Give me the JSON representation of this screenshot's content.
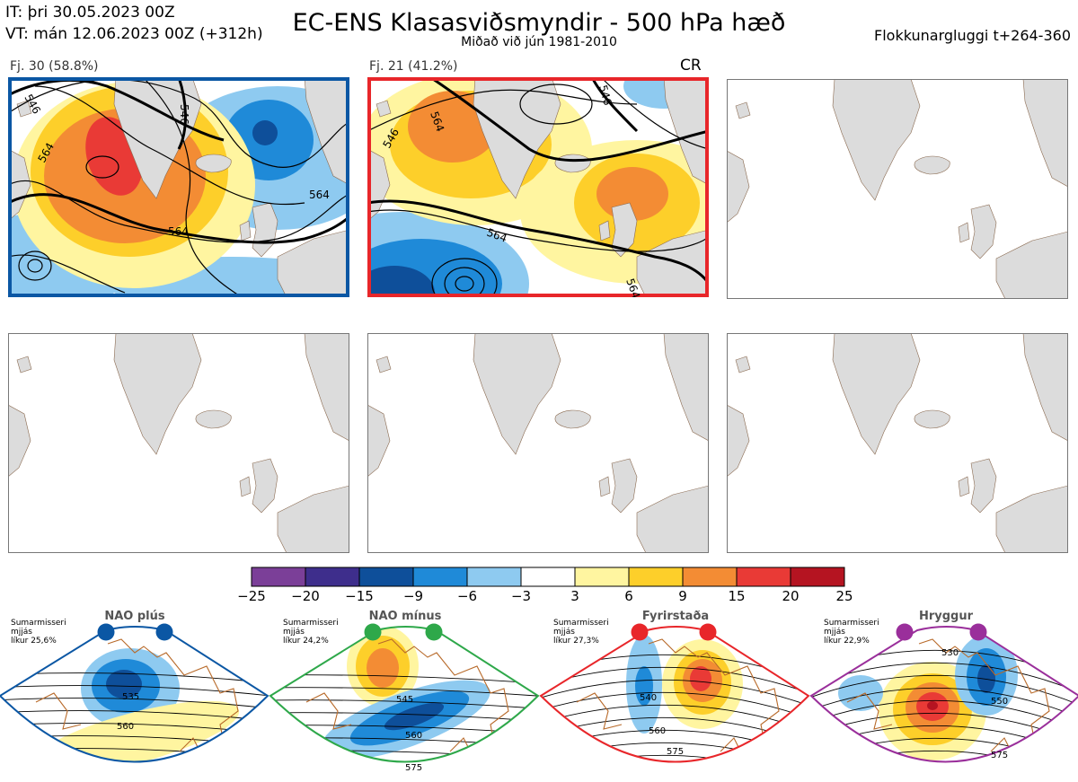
{
  "header": {
    "it_line": "IT: þri 30.05.2023 00Z",
    "vt_line": "VT: mán 12.06.2023 00Z  (+312h)",
    "title": "EC-ENS Klasasviðsmyndir - 500 hPa hæð",
    "subtitle": "Miðað við jún 1981-2010",
    "window_label": "Flokkunargluggi t+264-360"
  },
  "panels": [
    {
      "label": "Fj. 30 (58.8%)",
      "border_color": "#0b57a4",
      "tag": ""
    },
    {
      "label": "Fj. 21 (41.2%)",
      "border_color": "#e8262a",
      "tag": "CR"
    },
    {
      "label": "",
      "border_color": "",
      "tag": ""
    },
    {
      "label": "",
      "border_color": "",
      "tag": ""
    },
    {
      "label": "",
      "border_color": "",
      "tag": ""
    },
    {
      "label": "",
      "border_color": "",
      "tag": ""
    }
  ],
  "contour_labels": {
    "panel1": [
      "546",
      "546",
      "564",
      "564",
      "564"
    ],
    "panel2": [
      "546",
      "546",
      "564",
      "564",
      "564"
    ]
  },
  "chart_data": {
    "type": "heatmap",
    "title": "EC-ENS Klasasviðsmyndir - 500 hPa hæð",
    "colorbar": {
      "ticks": [
        -25,
        -20,
        -15,
        -9,
        -6,
        -3,
        3,
        6,
        9,
        15,
        20,
        25
      ],
      "colors": [
        "#7b3f98",
        "#3e2e8c",
        "#0e4f9a",
        "#1f8ad8",
        "#8ecaf0",
        "#ffffff",
        "#fff5a0",
        "#fdcf2a",
        "#f38c34",
        "#e93a36",
        "#b51421"
      ]
    },
    "clusters": [
      {
        "label": "Fj. 30 (58.8%)",
        "members": 30,
        "percent": 58.8
      },
      {
        "label": "Fj. 21 (41.2%)",
        "members": 21,
        "percent": 41.2
      }
    ],
    "regimes": [
      {
        "name": "NAO plús",
        "season": "Sumarmisseri",
        "type": "mjjás",
        "prob": "líkur 25,6%",
        "color": "#0b57a4",
        "labels": [
          "535",
          "560"
        ]
      },
      {
        "name": "NAO mínus",
        "season": "Sumarmisseri",
        "type": "mjjás",
        "prob": "líkur 24,2%",
        "color": "#2ea84a",
        "labels": [
          "545",
          "560",
          "575"
        ]
      },
      {
        "name": "Fyrirstaða",
        "season": "Sumarmisseri",
        "type": "mjjás",
        "prob": "líkur 27,3%",
        "color": "#e8262a",
        "labels": [
          "540",
          "560",
          "575"
        ]
      },
      {
        "name": "Hryggur",
        "season": "Sumarmisseri",
        "type": "mjjás",
        "prob": "líkur 22,9%",
        "color": "#9a2f9b",
        "labels": [
          "530",
          "550",
          "575"
        ]
      }
    ]
  }
}
